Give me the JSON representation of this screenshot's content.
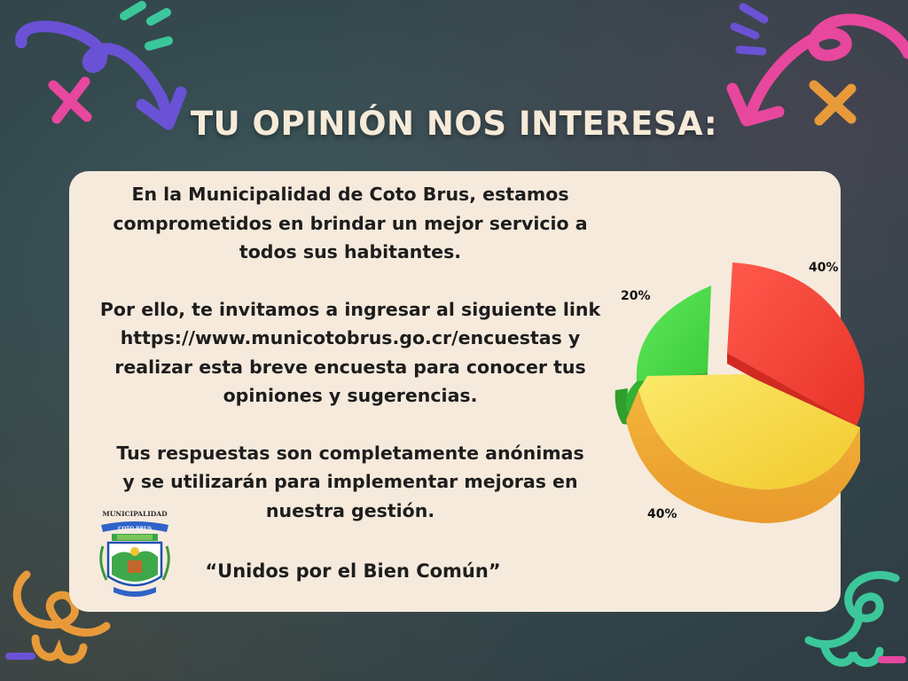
{
  "title": "TU OPINIÓN NOS INTERESA:",
  "paragraphs": {
    "p1_lines": [
      "En la Municipalidad de Coto Brus, estamos",
      "comprometidos en brindar un mejor servicio a",
      "todos sus habitantes."
    ],
    "p2_lines": [
      "Por ello, te invitamos a ingresar al siguiente link",
      "https://www.municotobrus.go.cr/encuestas y",
      "realizar esta breve encuesta para conocer tus",
      "opiniones y sugerencias."
    ],
    "p3_lines": [
      "Tus respuestas son completamente anónimas",
      "y se utilizarán para implementar mejoras en",
      "nuestra gestión."
    ]
  },
  "motto": "“Unidos por el Bien Común”",
  "crest": {
    "top_text": "MUNICIPALIDAD",
    "banner_text": "COTO BRUS"
  },
  "pie": {
    "labels": {
      "red": "40%",
      "yellow": "40%",
      "green": "20%"
    },
    "colors": {
      "red": "#f44a3c",
      "yellow": "#f6d43a",
      "green": "#4cd448"
    }
  },
  "colors": {
    "background": "#34494e",
    "card": "#f6eadc",
    "title": "#f6ead8",
    "purple_decoration": "#6a52d6",
    "pink_decoration": "#e8479e",
    "mint_decoration": "#3cc79a",
    "orange_decoration": "#e89a3a"
  }
}
